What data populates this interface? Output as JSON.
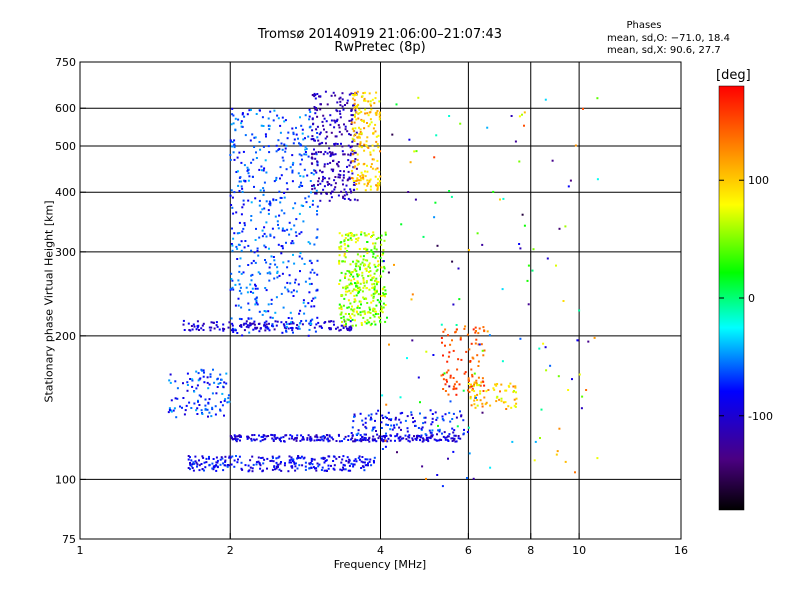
{
  "chart_data": {
    "type": "scatter",
    "title": "Tromsø 20140919 21:06:00–21:07:43",
    "subtitle": "RwPretec (8p)",
    "xlabel": "Frequency [MHz]",
    "ylabel": "Stationary phase Virtual Height [km]",
    "x_scale": "log",
    "y_scale": "log",
    "xlim": [
      1,
      16
    ],
    "ylim": [
      75,
      750
    ],
    "x_ticks": [
      1,
      2,
      4,
      6,
      8,
      10,
      16
    ],
    "y_ticks": [
      75,
      100,
      200,
      300,
      400,
      500,
      600,
      750
    ],
    "grid": true,
    "stats": {
      "heading": "Phases",
      "o_line": "mean, sd,O: −71.0, 18.4",
      "x_line": "mean, sd,X:  90.6, 27.7"
    },
    "colorbar": {
      "label": "[deg]",
      "ticks": [
        100,
        0,
        -100
      ],
      "range": [
        -180,
        180
      ],
      "colors": [
        "#000000",
        "#4b0082",
        "#0000ff",
        "#00ffff",
        "#00ff00",
        "#ffff00",
        "#ff0000"
      ]
    },
    "trace_clusters": [
      {
        "f": [
          1.65,
          3.9
        ],
        "h": [
          104,
          112
        ],
        "phase": [
          -110,
          -60
        ]
      },
      {
        "f": [
          2.0,
          5.8
        ],
        "h": [
          120,
          124
        ],
        "phase": [
          -120,
          -70
        ]
      },
      {
        "f": [
          3.5,
          6.0
        ],
        "h": [
          124,
          140
        ],
        "phase": [
          -110,
          -50
        ]
      },
      {
        "f": [
          1.5,
          2.0
        ],
        "h": [
          135,
          170
        ],
        "phase": [
          -100,
          -40
        ]
      },
      {
        "f": [
          1.6,
          3.5
        ],
        "h": [
          205,
          215
        ],
        "phase": [
          -120,
          -80
        ]
      },
      {
        "f": [
          2.0,
          3.0
        ],
        "h": [
          200,
          600
        ],
        "phase": [
          -90,
          -40
        ]
      },
      {
        "f": [
          2.9,
          3.6
        ],
        "h": [
          380,
          650
        ],
        "phase": [
          -130,
          -90
        ]
      },
      {
        "f": [
          3.3,
          4.1
        ],
        "h": [
          210,
          330
        ],
        "phase": [
          20,
          90
        ]
      },
      {
        "f": [
          3.5,
          4.0
        ],
        "h": [
          400,
          650
        ],
        "phase": [
          70,
          130
        ]
      },
      {
        "f": [
          5.3,
          6.5
        ],
        "h": [
          150,
          210
        ],
        "phase": [
          130,
          170
        ]
      },
      {
        "f": [
          6.0,
          7.5
        ],
        "h": [
          140,
          160
        ],
        "phase": [
          60,
          140
        ]
      },
      {
        "f": [
          4.0,
          11.0
        ],
        "h": [
          95,
          650
        ],
        "phase": [
          -160,
          160
        ]
      }
    ]
  }
}
